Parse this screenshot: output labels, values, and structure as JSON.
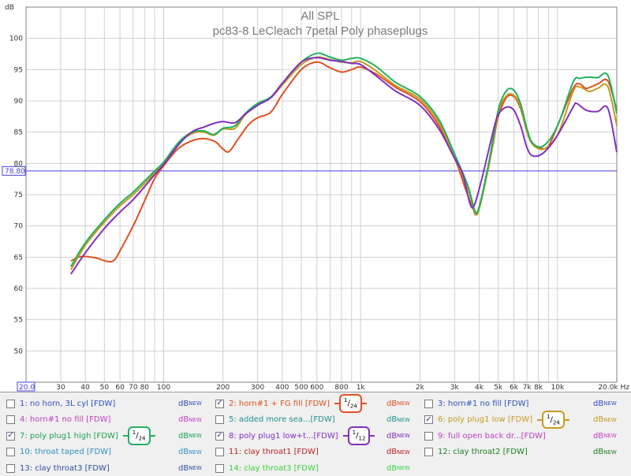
{
  "chart_data": {
    "type": "line",
    "title": "All SPL",
    "subtitle": "pc83-8 LeCleach 7petal Poly phaseplugs",
    "ylabel": "dB",
    "xunit": "Hz",
    "ylim": [
      45,
      105
    ],
    "xlim": [
      20,
      20000
    ],
    "xscale": "log",
    "grid": true,
    "y_ticks": [
      "50",
      "55",
      "60",
      "65",
      "70",
      "75",
      "80",
      "85",
      "90",
      "95",
      "100"
    ],
    "x_ticks": [
      {
        "v": 30,
        "label": "30"
      },
      {
        "v": 40,
        "label": "40"
      },
      {
        "v": 50,
        "label": "50"
      },
      {
        "v": 60,
        "label": "60"
      },
      {
        "v": 70,
        "label": "70"
      },
      {
        "v": 80,
        "label": "80"
      },
      {
        "v": 100,
        "label": "100"
      },
      {
        "v": 200,
        "label": "200"
      },
      {
        "v": 300,
        "label": "300"
      },
      {
        "v": 400,
        "label": "400"
      },
      {
        "v": 500,
        "label": "500"
      },
      {
        "v": 600,
        "label": "600"
      },
      {
        "v": 800,
        "label": "800"
      },
      {
        "v": 1000,
        "label": "1k"
      },
      {
        "v": 2000,
        "label": "2k"
      },
      {
        "v": 3000,
        "label": "3k"
      },
      {
        "v": 4000,
        "label": "4k"
      },
      {
        "v": 5000,
        "label": "5k"
      },
      {
        "v": 6000,
        "label": "6k"
      },
      {
        "v": 7000,
        "label": "7k"
      },
      {
        "v": 8000,
        "label": "8k"
      },
      {
        "v": 10000,
        "label": "10k"
      }
    ],
    "x_start_label": "20.0",
    "x_end_label": "20.0k Hz",
    "cursor": {
      "value": 78.8,
      "label": "78.80",
      "color": "#4040e0"
    },
    "series": [
      {
        "color": "#e05020",
        "points": [
          [
            33.8,
            64.4
          ],
          [
            38,
            65.1
          ],
          [
            45,
            64.9
          ],
          [
            52,
            64.3
          ],
          [
            56,
            64.5
          ],
          [
            60,
            66.0
          ],
          [
            70,
            70.0
          ],
          [
            80,
            74.0
          ],
          [
            90,
            77.6
          ],
          [
            100,
            79.6
          ],
          [
            120,
            82.5
          ],
          [
            150,
            83.9
          ],
          [
            180,
            83.6
          ],
          [
            200,
            82.3
          ],
          [
            215,
            81.9
          ],
          [
            240,
            84.0
          ],
          [
            270,
            86.2
          ],
          [
            300,
            87.3
          ],
          [
            350,
            88.2
          ],
          [
            400,
            91.0
          ],
          [
            500,
            95.0
          ],
          [
            600,
            96.2
          ],
          [
            700,
            95.3
          ],
          [
            800,
            94.6
          ],
          [
            900,
            95.0
          ],
          [
            1000,
            95.4
          ],
          [
            1200,
            94.3
          ],
          [
            1500,
            92.2
          ],
          [
            2000,
            89.9
          ],
          [
            2500,
            86.0
          ],
          [
            3000,
            80.9
          ],
          [
            3400,
            76.0
          ],
          [
            3700,
            73.0
          ],
          [
            3900,
            72.0
          ],
          [
            4300,
            77.0
          ],
          [
            4700,
            83.0
          ],
          [
            5000,
            87.5
          ],
          [
            5500,
            90.5
          ],
          [
            6000,
            90.7
          ],
          [
            6500,
            88.7
          ],
          [
            7000,
            85.0
          ],
          [
            7500,
            83.0
          ],
          [
            8200,
            82.4
          ],
          [
            9000,
            82.8
          ],
          [
            10000,
            86.0
          ],
          [
            12000,
            92.0
          ],
          [
            13000,
            92.7
          ],
          [
            14000,
            92.0
          ],
          [
            16000,
            92.7
          ],
          [
            18000,
            93.2
          ],
          [
            20000,
            88.5
          ]
        ]
      },
      {
        "color": "#c49a20",
        "points": [
          [
            33.8,
            63.0
          ],
          [
            40,
            66.9
          ],
          [
            50,
            70.6
          ],
          [
            60,
            73.2
          ],
          [
            70,
            75.0
          ],
          [
            80,
            76.8
          ],
          [
            90,
            78.5
          ],
          [
            100,
            80.0
          ],
          [
            120,
            83.3
          ],
          [
            140,
            84.8
          ],
          [
            160,
            85.0
          ],
          [
            180,
            84.5
          ],
          [
            200,
            85.5
          ],
          [
            230,
            85.6
          ],
          [
            260,
            87.8
          ],
          [
            300,
            89.5
          ],
          [
            350,
            90.5
          ],
          [
            400,
            92.5
          ],
          [
            500,
            95.8
          ],
          [
            600,
            97.0
          ],
          [
            700,
            96.6
          ],
          [
            800,
            96.2
          ],
          [
            900,
            96.1
          ],
          [
            1000,
            96.3
          ],
          [
            1200,
            94.8
          ],
          [
            1500,
            92.5
          ],
          [
            2000,
            90.3
          ],
          [
            2500,
            86.5
          ],
          [
            3000,
            81.0
          ],
          [
            3500,
            76.0
          ],
          [
            3800,
            72.2
          ],
          [
            4000,
            72.7
          ],
          [
            4500,
            80.0
          ],
          [
            5000,
            88.0
          ],
          [
            5500,
            90.8
          ],
          [
            6000,
            90.9
          ],
          [
            6500,
            89.0
          ],
          [
            7000,
            85.0
          ],
          [
            7500,
            83.0
          ],
          [
            8500,
            82.3
          ],
          [
            10000,
            84.5
          ],
          [
            12000,
            91.5
          ],
          [
            13000,
            92.2
          ],
          [
            14500,
            91.5
          ],
          [
            16000,
            92.0
          ],
          [
            18000,
            92.3
          ],
          [
            20000,
            86.0
          ]
        ]
      },
      {
        "color": "#20b060",
        "points": [
          [
            33.8,
            63.5
          ],
          [
            40,
            67.3
          ],
          [
            50,
            71.0
          ],
          [
            60,
            73.6
          ],
          [
            70,
            75.4
          ],
          [
            80,
            77.2
          ],
          [
            90,
            78.8
          ],
          [
            100,
            80.2
          ],
          [
            120,
            83.5
          ],
          [
            140,
            85.0
          ],
          [
            160,
            85.2
          ],
          [
            180,
            84.6
          ],
          [
            200,
            85.6
          ],
          [
            230,
            86.0
          ],
          [
            260,
            88.0
          ],
          [
            300,
            89.6
          ],
          [
            350,
            90.6
          ],
          [
            400,
            92.8
          ],
          [
            500,
            96.2
          ],
          [
            600,
            97.6
          ],
          [
            700,
            97.0
          ],
          [
            800,
            96.5
          ],
          [
            900,
            96.8
          ],
          [
            1000,
            96.8
          ],
          [
            1200,
            95.5
          ],
          [
            1500,
            93.0
          ],
          [
            2000,
            90.7
          ],
          [
            2500,
            87.0
          ],
          [
            3000,
            81.5
          ],
          [
            3500,
            76.5
          ],
          [
            3800,
            72.5
          ],
          [
            4000,
            73.0
          ],
          [
            4500,
            80.5
          ],
          [
            5000,
            88.5
          ],
          [
            5500,
            91.6
          ],
          [
            6000,
            91.7
          ],
          [
            6500,
            89.5
          ],
          [
            7000,
            85.5
          ],
          [
            7500,
            83.2
          ],
          [
            8500,
            82.8
          ],
          [
            10000,
            86.0
          ],
          [
            12000,
            93.0
          ],
          [
            13000,
            93.6
          ],
          [
            14500,
            93.8
          ],
          [
            16000,
            93.7
          ],
          [
            18000,
            94.1
          ],
          [
            20000,
            88.0
          ]
        ]
      },
      {
        "color": "#8030c0",
        "points": [
          [
            33.8,
            62.3
          ],
          [
            40,
            65.7
          ],
          [
            50,
            69.6
          ],
          [
            60,
            72.2
          ],
          [
            70,
            74.2
          ],
          [
            80,
            76.3
          ],
          [
            90,
            78.2
          ],
          [
            100,
            79.8
          ],
          [
            120,
            83.1
          ],
          [
            140,
            85.1
          ],
          [
            160,
            85.8
          ],
          [
            180,
            86.4
          ],
          [
            200,
            86.7
          ],
          [
            230,
            86.5
          ],
          [
            260,
            87.9
          ],
          [
            300,
            89.3
          ],
          [
            350,
            90.5
          ],
          [
            400,
            92.8
          ],
          [
            500,
            96.2
          ],
          [
            600,
            96.9
          ],
          [
            700,
            96.5
          ],
          [
            800,
            96.3
          ],
          [
            900,
            96.0
          ],
          [
            1000,
            95.8
          ],
          [
            1200,
            94.0
          ],
          [
            1500,
            91.6
          ],
          [
            2000,
            89.3
          ],
          [
            2500,
            85.5
          ],
          [
            3000,
            80.8
          ],
          [
            3300,
            78.3
          ],
          [
            3600,
            73.5
          ],
          [
            3800,
            73.5
          ],
          [
            4200,
            78.5
          ],
          [
            4700,
            85.0
          ],
          [
            5000,
            87.8
          ],
          [
            5500,
            89.0
          ],
          [
            6000,
            88.5
          ],
          [
            6500,
            86.0
          ],
          [
            7000,
            82.5
          ],
          [
            7500,
            81.2
          ],
          [
            8500,
            81.7
          ],
          [
            10000,
            84.5
          ],
          [
            12000,
            89.0
          ],
          [
            12500,
            89.6
          ],
          [
            14000,
            88.5
          ],
          [
            16000,
            88.3
          ],
          [
            18000,
            88.8
          ],
          [
            20000,
            81.8
          ]
        ]
      }
    ]
  },
  "legend": {
    "rows": [
      [
        {
          "label": "1: no horn, 3L cyl [FDW]",
          "color": "#3050c0",
          "checked": false,
          "db_color": "#3050c0"
        },
        {
          "label": "2: horn#1 + FG fill [FDW]",
          "color": "#e05020",
          "checked": true,
          "db_color": "#e05020",
          "smooth": {
            "num": "1",
            "den": "24",
            "color": "#e05020"
          }
        },
        {
          "label": "3: horn#1 no fill [FDW]",
          "color": "#3050c0",
          "checked": false,
          "db_color": "#3050c0"
        }
      ],
      [
        {
          "label": "4: horn#1 no fill [FDW]",
          "color": "#c040c0",
          "checked": false,
          "db_color": "#c040c0"
        },
        {
          "label": "5: added more sea...[FDW]",
          "color": "#209090",
          "checked": false,
          "db_color": "#209090"
        },
        {
          "label": "6: poly plug1 low [FDW]",
          "color": "#c49a20",
          "checked": true,
          "db_color": "#c49a20",
          "smooth": {
            "num": "1",
            "den": "24",
            "color": "#c49a20"
          }
        }
      ],
      [
        {
          "label": "7: poly plug1 high [FDW]",
          "color": "#20a050",
          "checked": true,
          "db_color": "#20a050",
          "smooth": {
            "num": "1",
            "den": "24",
            "color": "#20b060"
          }
        },
        {
          "label": "8: poly plug1 low+t...[FDW]",
          "color": "#8030c0",
          "checked": true,
          "db_color": "#8030c0",
          "smooth": {
            "num": "1",
            "den": "12",
            "color": "#8030c0"
          }
        },
        {
          "label": "9: full open back dr...[FDW]",
          "color": "#c040c0",
          "checked": false,
          "db_color": "#c040c0"
        }
      ],
      [
        {
          "label": "10: throat taped [FDW]",
          "color": "#3090c0",
          "checked": false,
          "db_color": "#3090c0"
        },
        {
          "label": "11: clay throat1 [FDW]",
          "color": "#c02020",
          "checked": false,
          "db_color": "#c02020"
        },
        {
          "label": "12: clay throat2 [FDW]",
          "color": "#208020",
          "checked": false,
          "db_color": "#208020"
        }
      ],
      [
        {
          "label": "13: clay throat3 [FDW]",
          "color": "#3050a0",
          "checked": false,
          "db_color": "#3050a0"
        },
        {
          "label": "14: clay throat3 [FDW]",
          "color": "#40d040",
          "checked": false,
          "db_color": "#40d040"
        }
      ]
    ],
    "db_text": "dB",
    "db_sup": "NEW",
    "check_mark": "✓"
  }
}
